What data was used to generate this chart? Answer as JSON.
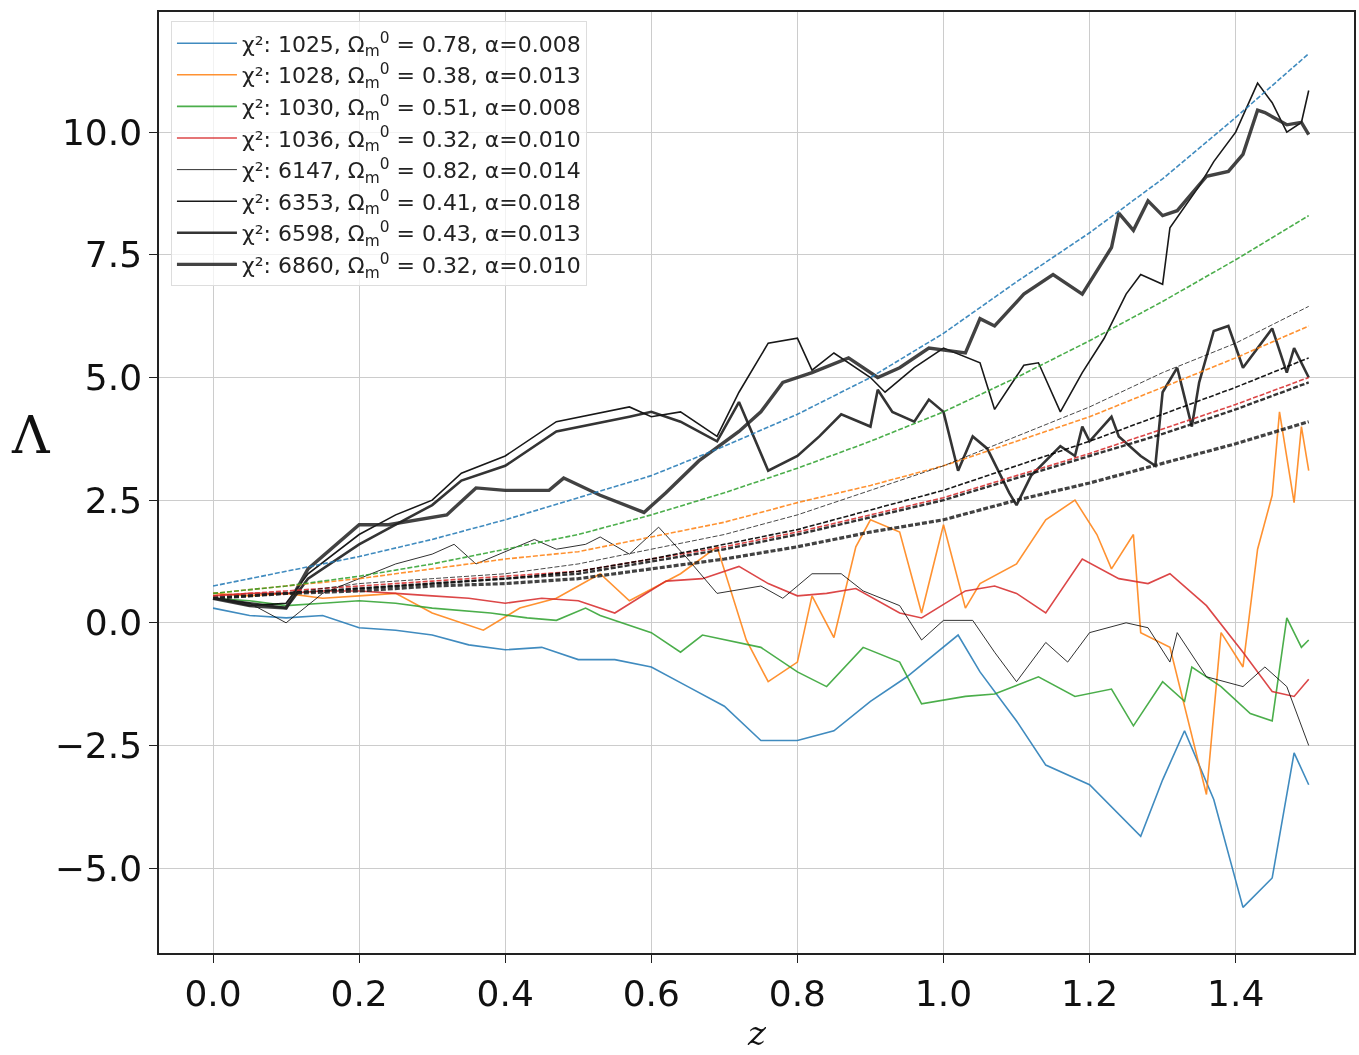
{
  "chart_data": {
    "type": "line",
    "xlabel": "z",
    "ylabel": "Λ",
    "x": [
      0,
      0.1,
      0.2,
      0.3,
      0.4,
      0.5,
      0.6,
      0.7,
      0.8,
      0.9,
      1.0,
      1.1,
      1.2,
      1.3,
      1.4,
      1.5
    ],
    "xlim": [
      -0.074,
      1.562
    ],
    "ylim": [
      -6.73,
      12.45
    ],
    "xticks": [
      {
        "value": 0,
        "label": "0.0"
      },
      {
        "value": 0.2,
        "label": "0.2"
      },
      {
        "value": 0.4,
        "label": "0.4"
      },
      {
        "value": 0.6,
        "label": "0.6"
      },
      {
        "value": 0.8,
        "label": "0.8"
      },
      {
        "value": 1.0,
        "label": "1.0"
      },
      {
        "value": 1.2,
        "label": "1.2"
      },
      {
        "value": 1.4,
        "label": "1.4"
      }
    ],
    "yticks": [
      {
        "value": -5,
        "label": "−5.0"
      },
      {
        "value": -2.5,
        "label": "−2.5"
      },
      {
        "value": 0,
        "label": "0.0"
      },
      {
        "value": 2.5,
        "label": "2.5"
      },
      {
        "value": 5,
        "label": "5.0"
      },
      {
        "value": 7.5,
        "label": "7.5"
      },
      {
        "value": 10,
        "label": "10.0"
      }
    ],
    "grid": true,
    "legend": "top left",
    "series": [
      {
        "name": "χ²: 1025, Ω$_{m}$$^{0}$ = 0.78, α=0.008",
        "color": "#1f77b4",
        "x": [
          0,
          0.05,
          0.1,
          0.15,
          0.2,
          0.25,
          0.3,
          0.35,
          0.4,
          0.45,
          0.5,
          0.55,
          0.6,
          0.65,
          0.7,
          0.75,
          0.8,
          0.85,
          0.9,
          0.95,
          1.02,
          1.05,
          1.1,
          1.14,
          1.2,
          1.27,
          1.3,
          1.33,
          1.37,
          1.41,
          1.45,
          1.48,
          1.5
        ],
        "values": [
          0.3,
          0.15,
          0.1,
          0.15,
          -0.1,
          -0.15,
          -0.25,
          -0.45,
          -0.55,
          -0.5,
          -0.75,
          -0.75,
          -0.9,
          -1.3,
          -1.7,
          -2.4,
          -2.4,
          -2.2,
          -1.6,
          -1.1,
          -0.25,
          -1.0,
          -2.0,
          -2.9,
          -3.3,
          -4.35,
          -3.2,
          -2.2,
          -3.6,
          -5.8,
          -5.2,
          -2.65,
          -3.3
        ]
      },
      {
        "name": "χ²: 1028, Ω$_{m}$$^{0}$ = 0.38, α=0.013",
        "color": "#ff7f0e",
        "x": [
          0,
          0.05,
          0.1,
          0.15,
          0.2,
          0.25,
          0.3,
          0.37,
          0.42,
          0.47,
          0.53,
          0.57,
          0.64,
          0.69,
          0.73,
          0.76,
          0.8,
          0.82,
          0.85,
          0.88,
          0.9,
          0.94,
          0.97,
          1.0,
          1.03,
          1.05,
          1.1,
          1.14,
          1.18,
          1.21,
          1.23,
          1.26,
          1.27,
          1.31,
          1.36,
          1.38,
          1.41,
          1.43,
          1.45,
          1.46,
          1.48,
          1.49,
          1.5
        ],
        "values": [
          0.6,
          0.55,
          0.6,
          0.5,
          0.55,
          0.6,
          0.2,
          -0.15,
          0.3,
          0.5,
          1.0,
          0.45,
          1.0,
          1.55,
          -0.35,
          -1.2,
          -0.8,
          0.55,
          -0.3,
          1.55,
          2.1,
          1.85,
          0.2,
          2.0,
          0.3,
          0.8,
          1.2,
          2.1,
          2.5,
          1.8,
          1.1,
          1.8,
          -0.2,
          -0.5,
          -3.5,
          -0.2,
          -0.9,
          1.5,
          2.6,
          4.3,
          2.45,
          4.0,
          3.1
        ]
      },
      {
        "name": "χ²: 1030, Ω$_{m}$$^{0}$ = 0.51, α=0.008",
        "color": "#2ca02c",
        "x": [
          0,
          0.05,
          0.1,
          0.15,
          0.2,
          0.25,
          0.3,
          0.38,
          0.43,
          0.47,
          0.51,
          0.53,
          0.6,
          0.64,
          0.67,
          0.75,
          0.8,
          0.84,
          0.89,
          0.94,
          0.97,
          1.03,
          1.07,
          1.13,
          1.18,
          1.23,
          1.26,
          1.3,
          1.33,
          1.34,
          1.38,
          1.42,
          1.45,
          1.47,
          1.49,
          1.5
        ],
        "values": [
          0.5,
          0.45,
          0.35,
          0.4,
          0.45,
          0.4,
          0.3,
          0.2,
          0.1,
          0.05,
          0.3,
          0.15,
          -0.2,
          -0.6,
          -0.25,
          -0.5,
          -1.0,
          -1.3,
          -0.5,
          -0.8,
          -1.65,
          -1.5,
          -1.45,
          -1.1,
          -1.5,
          -1.35,
          -2.1,
          -1.2,
          -1.6,
          -0.9,
          -1.3,
          -1.85,
          -2.0,
          0.1,
          -0.5,
          -0.35
        ]
      },
      {
        "name": "χ²: 1036, Ω$_{m}$$^{0}$ = 0.32, α=0.010",
        "color": "#d62728",
        "x": [
          0,
          0.05,
          0.1,
          0.15,
          0.2,
          0.25,
          0.3,
          0.35,
          0.4,
          0.45,
          0.5,
          0.55,
          0.62,
          0.67,
          0.72,
          0.76,
          0.8,
          0.84,
          0.88,
          0.94,
          0.97,
          1.03,
          1.07,
          1.1,
          1.14,
          1.19,
          1.24,
          1.28,
          1.31,
          1.36,
          1.41,
          1.45,
          1.48,
          1.5
        ],
        "values": [
          0.55,
          0.6,
          0.6,
          0.65,
          0.65,
          0.6,
          0.55,
          0.5,
          0.4,
          0.5,
          0.45,
          0.2,
          0.85,
          0.9,
          1.15,
          0.8,
          0.55,
          0.6,
          0.7,
          0.2,
          0.1,
          0.65,
          0.75,
          0.6,
          0.2,
          1.3,
          0.9,
          0.8,
          1.0,
          0.35,
          -0.6,
          -1.4,
          -1.5,
          -1.15
        ]
      },
      {
        "name": "χ²: 6147, Ω$_{m}$$^{0}$ = 0.82, α=0.014",
        "color": "#000000",
        "x": [
          0,
          0.05,
          0.1,
          0.15,
          0.2,
          0.25,
          0.3,
          0.33,
          0.36,
          0.44,
          0.47,
          0.51,
          0.53,
          0.57,
          0.61,
          0.65,
          0.69,
          0.75,
          0.78,
          0.82,
          0.86,
          0.89,
          0.94,
          0.97,
          1.0,
          1.04,
          1.07,
          1.1,
          1.14,
          1.17,
          1.2,
          1.25,
          1.28,
          1.31,
          1.32,
          1.36,
          1.41,
          1.44,
          1.47,
          1.5
        ],
        "values": [
          0.5,
          0.4,
          0.0,
          0.6,
          0.9,
          1.2,
          1.4,
          1.6,
          1.2,
          1.7,
          1.5,
          1.6,
          1.75,
          1.4,
          1.95,
          1.3,
          0.6,
          0.75,
          0.5,
          1.0,
          1.0,
          0.65,
          0.35,
          -0.35,
          0.05,
          0.05,
          -0.6,
          -1.2,
          -0.4,
          -0.8,
          -0.2,
          0.0,
          -0.1,
          -0.8,
          -0.2,
          -1.1,
          -1.3,
          -0.9,
          -1.3,
          -2.5
        ]
      },
      {
        "name": "χ²: 6353, Ω$_{m}$$^{0}$ = 0.41, α=0.018",
        "color": "#000000",
        "x": [
          0,
          0.05,
          0.1,
          0.13,
          0.2,
          0.25,
          0.3,
          0.34,
          0.4,
          0.47,
          0.57,
          0.6,
          0.64,
          0.69,
          0.72,
          0.76,
          0.8,
          0.82,
          0.85,
          0.9,
          0.92,
          0.96,
          1.0,
          1.05,
          1.07,
          1.11,
          1.13,
          1.16,
          1.19,
          1.22,
          1.25,
          1.27,
          1.3,
          1.31,
          1.35,
          1.37,
          1.4,
          1.43,
          1.45,
          1.47,
          1.49,
          1.5
        ],
        "values": [
          0.5,
          0.35,
          0.4,
          1.0,
          1.8,
          2.2,
          2.5,
          3.05,
          3.4,
          4.1,
          4.4,
          4.2,
          4.3,
          3.8,
          4.7,
          5.7,
          5.8,
          5.15,
          5.5,
          5.0,
          4.7,
          5.2,
          5.6,
          5.3,
          4.35,
          5.25,
          5.3,
          4.3,
          5.1,
          5.8,
          6.7,
          7.1,
          6.9,
          8.05,
          8.9,
          9.4,
          10.0,
          11.0,
          10.6,
          10.0,
          10.2,
          10.85
        ]
      },
      {
        "name": "χ²: 6598, Ω$_{m}$$^{0}$ = 0.43, α=0.013",
        "color": "#111111",
        "x": [
          0,
          0.05,
          0.1,
          0.13,
          0.2,
          0.25,
          0.3,
          0.34,
          0.4,
          0.47,
          0.57,
          0.6,
          0.64,
          0.69,
          0.72,
          0.76,
          0.8,
          0.83,
          0.86,
          0.9,
          0.91,
          0.93,
          0.96,
          0.98,
          1.0,
          1.02,
          1.04,
          1.06,
          1.09,
          1.1,
          1.12,
          1.16,
          1.18,
          1.19,
          1.2,
          1.23,
          1.24,
          1.27,
          1.29,
          1.3,
          1.32,
          1.34,
          1.35,
          1.37,
          1.39,
          1.41,
          1.45,
          1.47,
          1.48,
          1.5
        ],
        "values": [
          0.5,
          0.4,
          0.3,
          0.9,
          1.6,
          2.0,
          2.4,
          2.9,
          3.2,
          3.9,
          4.2,
          4.3,
          4.1,
          3.7,
          4.5,
          3.1,
          3.4,
          3.8,
          4.25,
          4.0,
          4.75,
          4.3,
          4.1,
          4.55,
          4.3,
          3.1,
          3.8,
          3.55,
          2.65,
          2.4,
          3.0,
          3.6,
          3.4,
          4.0,
          3.7,
          4.2,
          3.8,
          3.4,
          3.2,
          4.7,
          5.2,
          4.0,
          4.9,
          5.95,
          6.05,
          5.2,
          6.0,
          5.1,
          5.6,
          5.0
        ]
      },
      {
        "name": "χ²: 6860, Ω$_{m}$$^{0}$ = 0.32, α=0.010",
        "color": "#222222",
        "x": [
          0,
          0.05,
          0.1,
          0.13,
          0.2,
          0.24,
          0.32,
          0.36,
          0.4,
          0.46,
          0.48,
          0.53,
          0.59,
          0.62,
          0.665,
          0.72,
          0.75,
          0.78,
          0.82,
          0.87,
          0.91,
          0.94,
          0.98,
          1.03,
          1.05,
          1.07,
          1.11,
          1.15,
          1.19,
          1.23,
          1.24,
          1.26,
          1.28,
          1.3,
          1.32,
          1.36,
          1.39,
          1.41,
          1.43,
          1.44,
          1.47,
          1.49,
          1.5
        ],
        "values": [
          0.5,
          0.35,
          0.3,
          1.1,
          2.0,
          2.0,
          2.2,
          2.75,
          2.7,
          2.7,
          2.95,
          2.6,
          2.25,
          2.65,
          3.3,
          3.9,
          4.3,
          4.9,
          5.1,
          5.4,
          5.0,
          5.2,
          5.6,
          5.5,
          6.2,
          6.05,
          6.7,
          7.1,
          6.7,
          7.65,
          8.35,
          8.0,
          8.6,
          8.3,
          8.4,
          9.1,
          9.2,
          9.55,
          10.45,
          10.4,
          10.15,
          10.2,
          9.95
        ]
      },
      {
        "color": "#1f77b4",
        "line_style": "dashed",
        "values": [
          0.75,
          1.05,
          1.35,
          1.7,
          2.1,
          2.55,
          3.0,
          3.6,
          4.25,
          5.0,
          5.9,
          6.95,
          7.95,
          9.05,
          10.3,
          11.6
        ]
      },
      {
        "color": "#ff7f0e",
        "line_style": "dashed",
        "values": [
          0.6,
          0.75,
          0.9,
          1.1,
          1.3,
          1.45,
          1.75,
          2.05,
          2.45,
          2.8,
          3.2,
          3.7,
          4.2,
          4.8,
          5.4,
          6.05
        ]
      },
      {
        "color": "#2ca02c",
        "line_style": "dashed",
        "values": [
          0.6,
          0.75,
          0.95,
          1.2,
          1.5,
          1.8,
          2.2,
          2.65,
          3.15,
          3.7,
          4.3,
          5.0,
          5.75,
          6.55,
          7.4,
          8.3
        ]
      },
      {
        "color": "#d62728",
        "line_style": "dashed",
        "values": [
          0.55,
          0.65,
          0.75,
          0.85,
          0.95,
          1.05,
          1.3,
          1.55,
          1.85,
          2.2,
          2.55,
          3.0,
          3.45,
          3.95,
          4.45,
          5.0
        ]
      },
      {
        "color": "#000000",
        "line_style": "dashed",
        "values": [
          0.5,
          0.6,
          0.8,
          0.9,
          1.0,
          1.2,
          1.5,
          1.8,
          2.2,
          2.7,
          3.2,
          3.8,
          4.4,
          5.1,
          5.7,
          6.45
        ]
      },
      {
        "color": "#000000",
        "line_style": "dashed",
        "values": [
          0.5,
          0.6,
          0.7,
          0.8,
          0.9,
          1.05,
          1.3,
          1.6,
          1.9,
          2.3,
          2.7,
          3.2,
          3.7,
          4.25,
          4.8,
          5.4
        ]
      },
      {
        "color": "#111111",
        "line_style": "dashed",
        "values": [
          0.5,
          0.6,
          0.7,
          0.8,
          0.9,
          1.0,
          1.25,
          1.5,
          1.8,
          2.15,
          2.5,
          2.95,
          3.4,
          3.85,
          4.35,
          4.9
        ]
      },
      {
        "color": "#222222",
        "line_style": "dashed",
        "values": [
          0.5,
          0.6,
          0.65,
          0.75,
          0.8,
          0.9,
          1.1,
          1.3,
          1.55,
          1.85,
          2.1,
          2.5,
          2.85,
          3.25,
          3.65,
          4.1
        ]
      }
    ]
  }
}
